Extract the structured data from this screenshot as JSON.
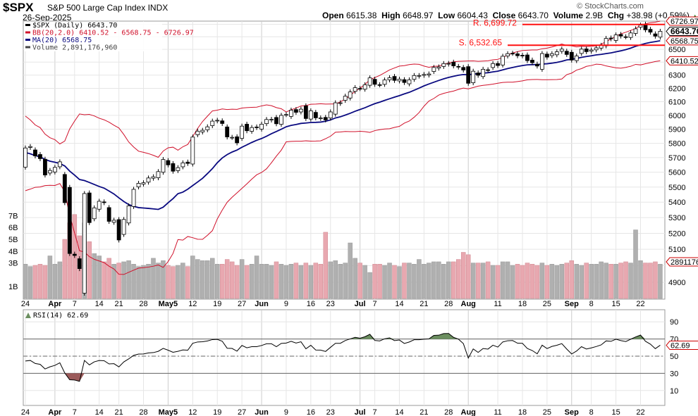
{
  "header": {
    "symbol": "$SPX",
    "name": "S&P 500 Large Cap Index",
    "exchange": "INDX",
    "date": "26-Sep-2025",
    "open_label": "Open",
    "open": "6615.38",
    "high_label": "High",
    "high": "6648.97",
    "low_label": "Low",
    "low": "6604.43",
    "close_label": "Close",
    "close": "6643.70",
    "volume_label": "Volume",
    "volume": "2.9B",
    "chg_label": "Chg",
    "chg": "+38.98 (+0.59%)",
    "watermark": "© StockCharts.com"
  },
  "legend": {
    "price": "$SPX (Daily) 6643.70",
    "bb": "BB(20,2.0) 6410.52 - 6568.75 - 6726.97",
    "ma": "MA(20) 6568.75",
    "volume": "Volume 2,891,176,960",
    "rsi": "RSI(14) 62.69"
  },
  "colors": {
    "bb": "#d0102a",
    "ma": "#0a0a80",
    "vol_up": "#b0b0b0",
    "vol_down": "#e8a8b0",
    "annot": "#ff1010",
    "overbought": "#6b8e5f",
    "oversold": "#9b5a5a"
  },
  "chart_data": {
    "type": "candlestick",
    "title": "$SPX S&P 500 Large Cap Index",
    "lookback_closes": [
      5983,
      5955,
      5956,
      5861,
      5955,
      5850,
      5778,
      5842,
      5738,
      5770,
      5614,
      5572,
      5599,
      5521,
      5638,
      5675,
      5615,
      5662,
      5675,
      5668
    ],
    "closes": [
      5767,
      5777,
      5712,
      5693,
      5581,
      5612,
      5633,
      5671,
      5397,
      5074,
      5062,
      4982,
      5457,
      5268,
      5363,
      5406,
      5397,
      5276,
      5283,
      5158,
      5288,
      5376,
      5485,
      5525,
      5529,
      5561,
      5569,
      5604,
      5687,
      5650,
      5607,
      5631,
      5664,
      5660,
      5844,
      5886,
      5892,
      5917,
      5958,
      5964,
      5941,
      5845,
      5842,
      5803,
      5922,
      5889,
      5912,
      5912,
      5936,
      5970,
      5971,
      5939,
      6000,
      6006,
      6038,
      6022,
      6045,
      5977,
      6033,
      5982,
      5981,
      5967,
      6025,
      6092,
      6092,
      6141,
      6173,
      6205,
      6198,
      6227,
      6279,
      6230,
      6226,
      6263,
      6280,
      6260,
      6269,
      6244,
      6264,
      6297,
      6297,
      6305,
      6309,
      6359,
      6363,
      6389,
      6390,
      6371,
      6362,
      6339,
      6238,
      6330,
      6299,
      6345,
      6340,
      6389,
      6374,
      6446,
      6466,
      6469,
      6450,
      6449,
      6412,
      6396,
      6370,
      6467,
      6439,
      6466,
      6481,
      6502,
      6460,
      6416,
      6448,
      6502,
      6482,
      6495,
      6512,
      6532,
      6587,
      6584,
      6615,
      6606,
      6600,
      6631,
      6664,
      6694,
      6656,
      6637,
      6605,
      6644
    ],
    "volume_billions": [
      2.9,
      2.7,
      2.8,
      2.9,
      2.8,
      3.6,
      2.9,
      3.1,
      5.0,
      6.4,
      7.1,
      5.3,
      6.4,
      4.8,
      3.8,
      3.6,
      3.1,
      3.4,
      2.9,
      3.0,
      3.1,
      3.2,
      2.9,
      2.7,
      2.8,
      2.9,
      3.4,
      3.0,
      3.2,
      2.8,
      2.7,
      2.8,
      3.0,
      2.7,
      3.6,
      3.3,
      3.2,
      3.2,
      3.4,
      2.9,
      2.9,
      3.3,
      3.1,
      2.8,
      3.3,
      2.8,
      2.9,
      3.6,
      2.9,
      2.9,
      2.8,
      3.1,
      2.9,
      2.8,
      2.9,
      3.0,
      2.8,
      3.0,
      2.8,
      3.0,
      2.9,
      5.6,
      3.1,
      3.2,
      2.9,
      3.0,
      4.7,
      3.4,
      3.0,
      2.8,
      2.2,
      2.9,
      2.9,
      2.8,
      3.0,
      2.8,
      2.7,
      3.0,
      3.0,
      2.9,
      3.3,
      2.9,
      3.0,
      3.1,
      3.1,
      2.9,
      3.1,
      3.1,
      3.3,
      3.9,
      3.7,
      3.0,
      3.0,
      3.0,
      3.1,
      2.8,
      2.8,
      3.1,
      3.1,
      2.8,
      2.9,
      2.8,
      3.0,
      2.9,
      2.8,
      3.0,
      2.8,
      2.9,
      2.8,
      2.9,
      3.0,
      3.2,
      2.9,
      2.8,
      3.0,
      2.9,
      2.9,
      3.1,
      3.0,
      2.9,
      2.9,
      3.0,
      3.1,
      3.0,
      5.8,
      3.2,
      3.0,
      3.0,
      3.1,
      2.9
    ],
    "x_ticks": [
      {
        "i": 0,
        "label": "24"
      },
      {
        "i": 6,
        "label": "Apr",
        "bold": true
      },
      {
        "i": 10,
        "label": "7"
      },
      {
        "i": 15,
        "label": "14"
      },
      {
        "i": 19,
        "label": "21"
      },
      {
        "i": 24,
        "label": "28"
      },
      {
        "i": 29,
        "label": "May5",
        "bold": true
      },
      {
        "i": 34,
        "label": "12"
      },
      {
        "i": 39,
        "label": "19"
      },
      {
        "i": 44,
        "label": "27"
      },
      {
        "i": 48,
        "label": "Jun",
        "bold": true
      },
      {
        "i": 53,
        "label": "9"
      },
      {
        "i": 58,
        "label": "16"
      },
      {
        "i": 62,
        "label": "23"
      },
      {
        "i": 68,
        "label": "Jul",
        "bold": true
      },
      {
        "i": 71,
        "label": "7"
      },
      {
        "i": 76,
        "label": "14"
      },
      {
        "i": 81,
        "label": "21"
      },
      {
        "i": 86,
        "label": "28"
      },
      {
        "i": 90,
        "label": "Aug",
        "bold": true
      },
      {
        "i": 96,
        "label": "11"
      },
      {
        "i": 101,
        "label": "18"
      },
      {
        "i": 106,
        "label": "25"
      },
      {
        "i": 111,
        "label": "Sep",
        "bold": true
      },
      {
        "i": 115,
        "label": "8"
      },
      {
        "i": 120,
        "label": "15"
      },
      {
        "i": 125,
        "label": "22"
      }
    ],
    "price_ticks": [
      "6500",
      "6300",
      "6200",
      "6100",
      "6000",
      "5900",
      "5800",
      "5700",
      "5600",
      "5500",
      "5400",
      "5300",
      "5200",
      "5100",
      "4900"
    ],
    "volume_ticks": [
      "1B",
      "3B",
      "4B",
      "5B",
      "6B",
      "7B"
    ],
    "rsi_ticks": [
      "90",
      "70",
      "50",
      "30",
      "10"
    ],
    "price_tags": [
      {
        "label": "6726.97",
        "value": 6726.97
      },
      {
        "label": "6643.70",
        "value": 6643.7,
        "bold": true
      },
      {
        "label": "6568.75",
        "value": 6568.75
      },
      {
        "label": "6410.52",
        "value": 6410.52
      }
    ],
    "volume_tag": "2891176",
    "rsi_tag": "62.69",
    "annotations": [
      {
        "label": "R. 6,699.72",
        "value": 6699.72,
        "from": 101
      },
      {
        "label": "S. 6,532.65",
        "value": 6532.65,
        "from": 98
      }
    ]
  }
}
